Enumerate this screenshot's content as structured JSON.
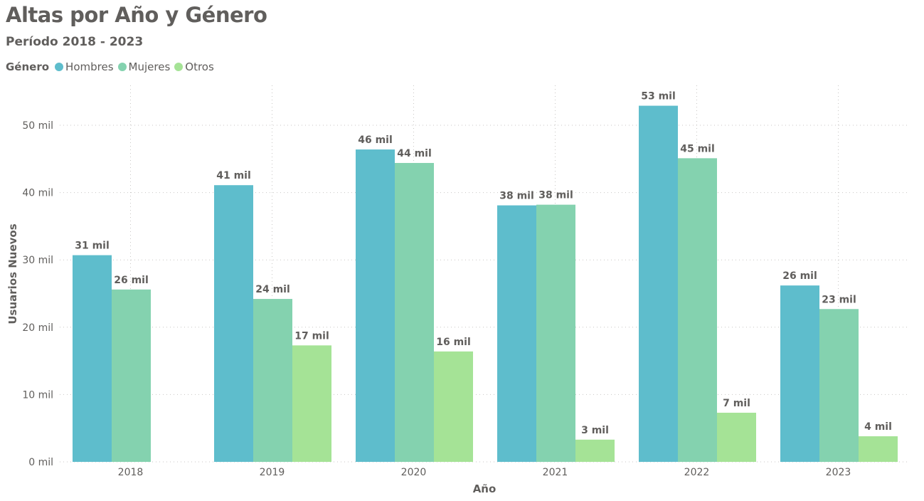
{
  "title": "Altas por Año y Género",
  "subtitle": "Período 2018 - 2023",
  "legend": {
    "title": "Género",
    "items": [
      {
        "label": "Hombres",
        "color": "#5ebdcc"
      },
      {
        "label": "Mujeres",
        "color": "#84d2af"
      },
      {
        "label": "Otros",
        "color": "#a5e396"
      }
    ]
  },
  "chart_data": {
    "type": "bar",
    "title": "Altas por Año y Género",
    "subtitle": "Período 2018 - 2023",
    "xlabel": "Año",
    "ylabel": "Usuarios Nuevos",
    "categories": [
      "2018",
      "2019",
      "2020",
      "2021",
      "2022",
      "2023"
    ],
    "ylim": [
      0,
      55000
    ],
    "yticks": [
      0,
      10000,
      20000,
      30000,
      40000,
      50000
    ],
    "ytick_labels": [
      "0 mil",
      "10 mil",
      "20 mil",
      "30 mil",
      "40 mil",
      "50 mil"
    ],
    "grid": true,
    "legend_position": "top-left",
    "series": [
      {
        "name": "Hombres",
        "color": "#5ebdcc",
        "values": [
          30700,
          41100,
          46400,
          38100,
          52900,
          26200
        ],
        "labels": [
          "31 mil",
          "41 mil",
          "46 mil",
          "38 mil",
          "53 mil",
          "26 mil"
        ]
      },
      {
        "name": "Mujeres",
        "color": "#84d2af",
        "values": [
          25600,
          24200,
          44400,
          38200,
          45100,
          22700
        ],
        "labels": [
          "26 mil",
          "24 mil",
          "44 mil",
          "38 mil",
          "45 mil",
          "23 mil"
        ]
      },
      {
        "name": "Otros",
        "color": "#a5e396",
        "values": [
          null,
          17300,
          16400,
          3300,
          7300,
          3800
        ],
        "labels": [
          "",
          "17 mil",
          "16 mil",
          "3 mil",
          "7 mil",
          "4 mil"
        ]
      }
    ]
  }
}
